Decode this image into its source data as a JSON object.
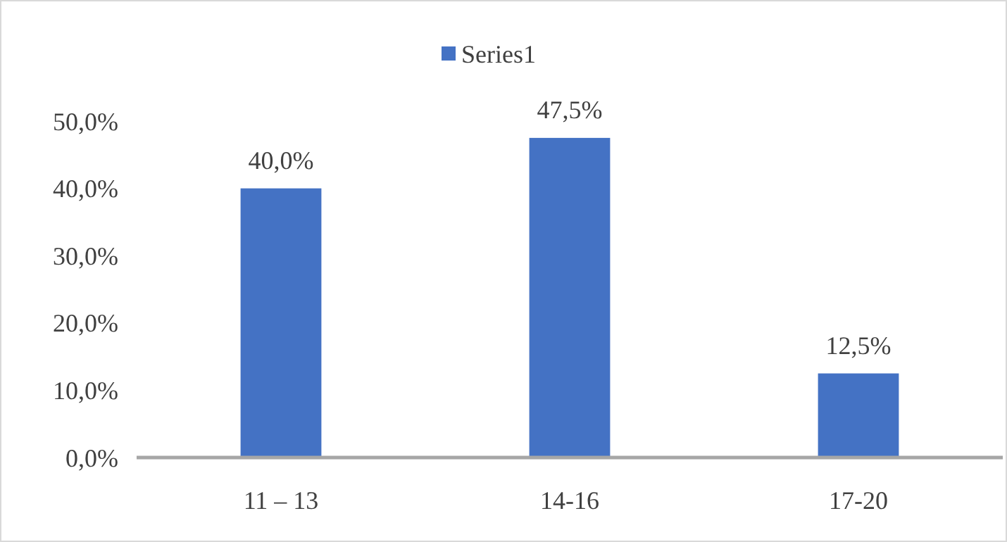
{
  "chart_data": {
    "type": "bar",
    "categories": [
      "11 – 13",
      "14-16",
      "17-20"
    ],
    "series": [
      {
        "name": "Series1",
        "color": "#4472c4",
        "values": [
          40,
          47.5,
          12.5
        ],
        "value_labels": [
          "40,0%",
          "47,5%",
          "12,5%"
        ]
      }
    ],
    "ylim": [
      0,
      50
    ],
    "yticks": [
      {
        "value": 0,
        "label": "0,0%"
      },
      {
        "value": 10,
        "label": "10,0%"
      },
      {
        "value": 20,
        "label": "20,0%"
      },
      {
        "value": 30,
        "label": "30,0%"
      },
      {
        "value": 40,
        "label": "40,0%"
      },
      {
        "value": 50,
        "label": "50,0%"
      }
    ],
    "grid": false,
    "legend": "top"
  }
}
